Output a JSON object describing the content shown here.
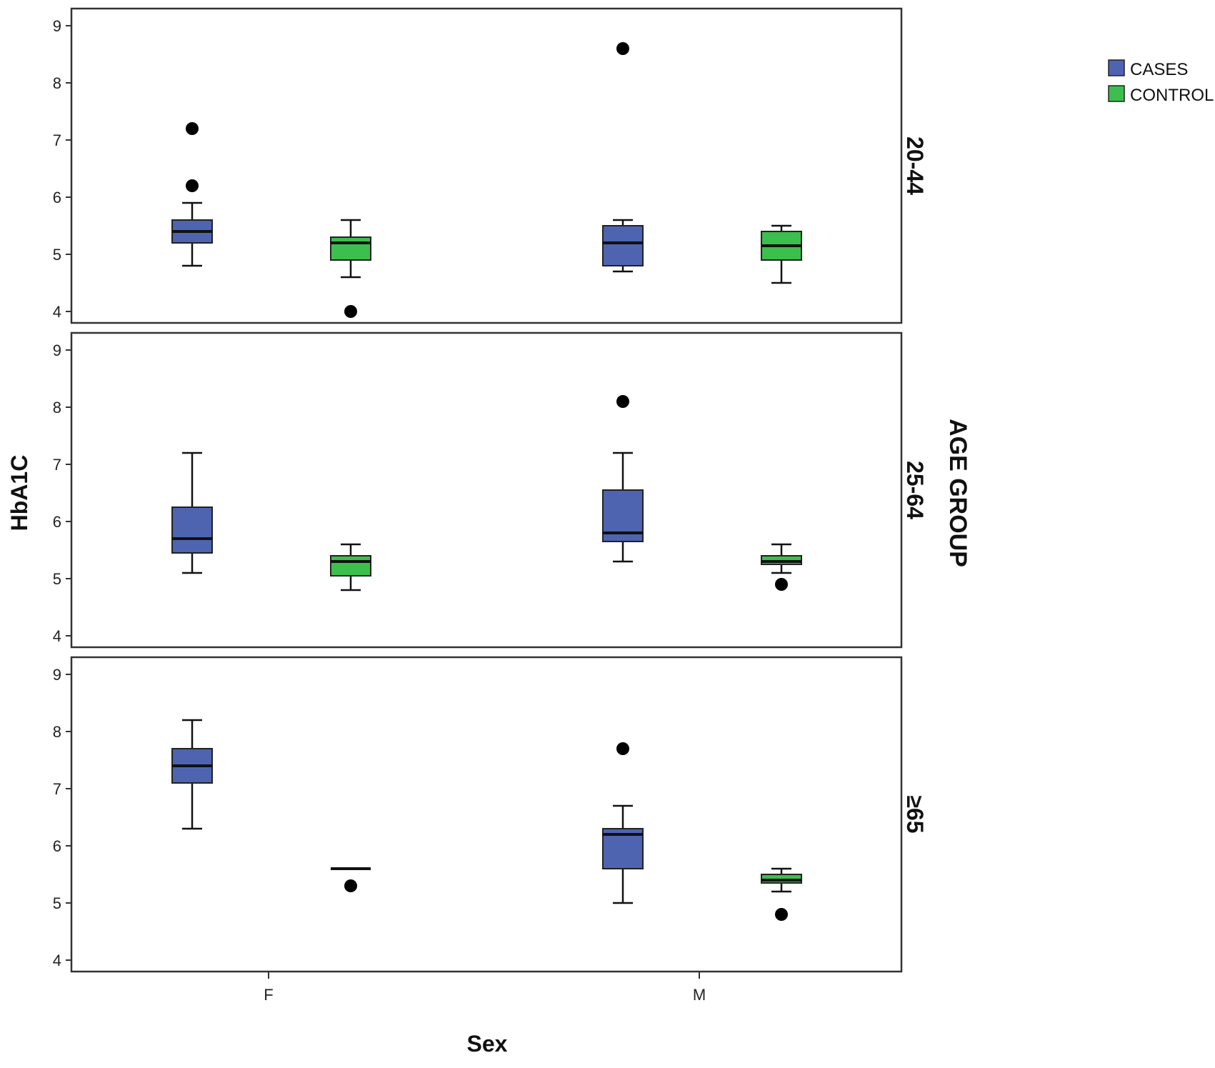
{
  "chart_data": {
    "type": "box",
    "ylabel": "HbA1C",
    "xlabel": "Sex",
    "facet_label": "AGE GROUP",
    "categories": [
      "F",
      "M"
    ],
    "ylim": [
      3.8,
      9.3
    ],
    "yticks": [
      4,
      5,
      6,
      7,
      8,
      9
    ],
    "legend": {
      "position": "top-right",
      "items": [
        {
          "label": "CASES",
          "color": "#4e64b0"
        },
        {
          "label": "CONTROL",
          "color": "#3cbf4c"
        }
      ]
    },
    "panels": [
      {
        "group": "20-44",
        "boxes": [
          {
            "category": "F",
            "series": "CASES",
            "min": 4.8,
            "q1": 5.2,
            "median": 5.4,
            "q3": 5.6,
            "max": 5.9,
            "outliers": [
              6.2,
              7.2
            ]
          },
          {
            "category": "F",
            "series": "CONTROL",
            "min": 4.6,
            "q1": 4.9,
            "median": 5.2,
            "q3": 5.3,
            "max": 5.6,
            "outliers": [
              4.0
            ]
          },
          {
            "category": "M",
            "series": "CASES",
            "min": 4.7,
            "q1": 4.8,
            "median": 5.2,
            "q3": 5.5,
            "max": 5.6,
            "outliers": [
              8.6
            ]
          },
          {
            "category": "M",
            "series": "CONTROL",
            "min": 4.5,
            "q1": 4.9,
            "median": 5.15,
            "q3": 5.4,
            "max": 5.5,
            "outliers": []
          }
        ]
      },
      {
        "group": "25-64",
        "boxes": [
          {
            "category": "F",
            "series": "CASES",
            "min": 5.1,
            "q1": 5.45,
            "median": 5.7,
            "q3": 6.25,
            "max": 7.2,
            "outliers": []
          },
          {
            "category": "F",
            "series": "CONTROL",
            "min": 4.8,
            "q1": 5.05,
            "median": 5.3,
            "q3": 5.4,
            "max": 5.6,
            "outliers": []
          },
          {
            "category": "M",
            "series": "CASES",
            "min": 5.3,
            "q1": 5.65,
            "median": 5.8,
            "q3": 6.55,
            "max": 7.2,
            "outliers": [
              8.1
            ]
          },
          {
            "category": "M",
            "series": "CONTROL",
            "min": 5.1,
            "q1": 5.25,
            "median": 5.3,
            "q3": 5.4,
            "max": 5.6,
            "outliers": [
              4.9
            ]
          }
        ]
      },
      {
        "group": "≥65",
        "boxes": [
          {
            "category": "F",
            "series": "CASES",
            "min": 6.3,
            "q1": 7.1,
            "median": 7.4,
            "q3": 7.7,
            "max": 8.2,
            "outliers": []
          },
          {
            "category": "F",
            "series": "CONTROL",
            "min": 5.6,
            "q1": 5.6,
            "median": 5.6,
            "q3": 5.6,
            "max": 5.6,
            "outliers": [
              5.3
            ]
          },
          {
            "category": "M",
            "series": "CASES",
            "min": 5.0,
            "q1": 5.6,
            "median": 6.2,
            "q3": 6.3,
            "max": 6.7,
            "outliers": [
              7.7
            ]
          },
          {
            "category": "M",
            "series": "CONTROL",
            "min": 5.2,
            "q1": 5.35,
            "median": 5.4,
            "q3": 5.5,
            "max": 5.6,
            "outliers": [
              4.8
            ]
          }
        ]
      }
    ]
  }
}
